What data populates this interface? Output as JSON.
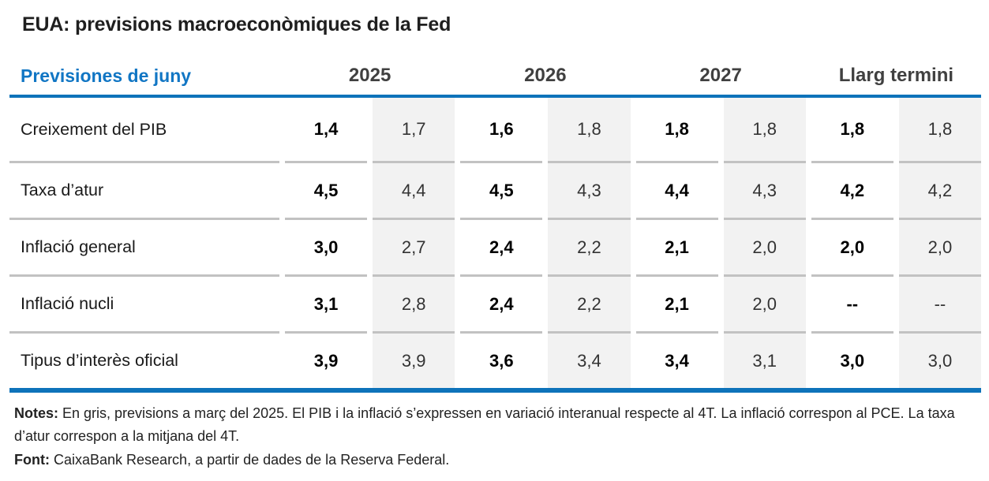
{
  "title": "EUA: previsions macroeconòmiques de la Fed",
  "chart_data": {
    "type": "table",
    "title": "EUA: previsions macroeconòmiques de la Fed",
    "corner_label": "Previsiones de juny",
    "column_groups": [
      "2025",
      "2026",
      "2027",
      "Llarg termini"
    ],
    "subcolumn_legend": [
      "negreta = previsions de juny",
      "gris = previsions a març del 2025"
    ],
    "rows": [
      {
        "label": "Creixement del PIB",
        "values": [
          "1,4",
          "1,7",
          "1,6",
          "1,8",
          "1,8",
          "1,8",
          "1,8",
          "1,8"
        ]
      },
      {
        "label": "Taxa d’atur",
        "values": [
          "4,5",
          "4,4",
          "4,5",
          "4,3",
          "4,4",
          "4,3",
          "4,2",
          "4,2"
        ]
      },
      {
        "label": "Inflació general",
        "values": [
          "3,0",
          "2,7",
          "2,4",
          "2,2",
          "2,1",
          "2,0",
          "2,0",
          "2,0"
        ]
      },
      {
        "label": "Inflació nucli",
        "values": [
          "3,1",
          "2,8",
          "2,4",
          "2,2",
          "2,1",
          "2,0",
          "--",
          "--"
        ]
      },
      {
        "label": "Tipus d’interès oficial",
        "values": [
          "3,9",
          "3,9",
          "3,6",
          "3,4",
          "3,4",
          "3,1",
          "3,0",
          "3,0"
        ]
      }
    ]
  },
  "footer": {
    "notes_label": "Notes:",
    "notes_text": " En gris, previsions a març del 2025. El PIB i la inflació s’expressen en variació interanual respecte al 4T. La inflació correspon al PCE. La taxa d’atur correspon a la mitjana del 4T.",
    "font_label": "Font:",
    "font_text": " CaixaBank Research, a partir de dades de la Reserva Federal."
  },
  "colors": {
    "accent_blue": "#0e73ba",
    "blue_text": "#1176c4",
    "stripe_gray": "#f2f2f2",
    "separator_gray": "#c2c2c2",
    "header_gray": "#404040"
  }
}
